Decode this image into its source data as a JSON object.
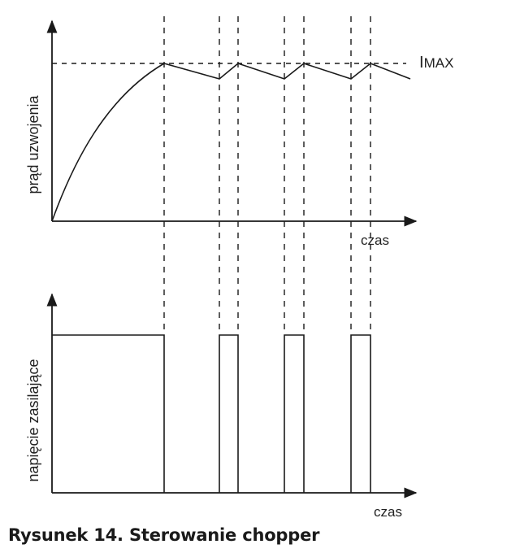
{
  "top_plot": {
    "y_label": "prąd uzwojenia",
    "x_label": "czas",
    "imax_label_first": "I",
    "imax_label_rest": "MAX"
  },
  "bottom_plot": {
    "y_label": "napięcie zasilające",
    "x_label": "czas"
  },
  "caption": "Rysunek 14. Sterowanie chopper",
  "chart_data": {
    "type": "line",
    "title": "Rysunek 14. Sterowanie chopper",
    "series": [
      {
        "name": "prąd uzwojenia",
        "shape": "exponential rise to IMAX, then sawtooth between IMAX and a lower level"
      },
      {
        "name": "napięcie zasilające",
        "shape": "long initial pulse followed by three short pulses"
      }
    ],
    "pulses": 4
  },
  "colors": {
    "ink": "#1a1a1a",
    "background": "#ffffff"
  }
}
